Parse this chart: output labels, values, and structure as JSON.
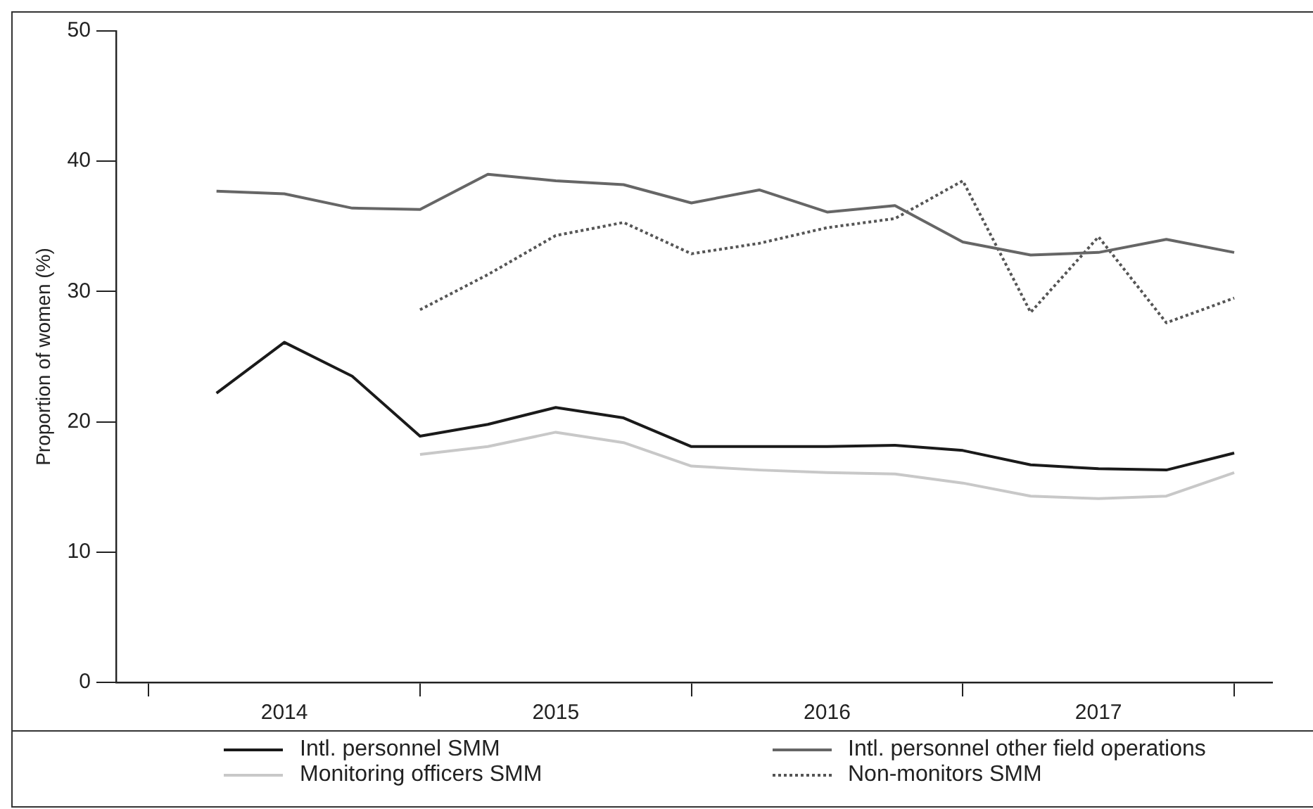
{
  "chart_data": {
    "type": "line",
    "ylabel": "Proportion of women (%)",
    "x": [
      2014.25,
      2014.5,
      2014.75,
      2015,
      2015.25,
      2015.5,
      2015.75,
      2016,
      2016.25,
      2016.5,
      2016.75,
      2017,
      2017.25,
      2017.5,
      2017.75,
      2018
    ],
    "xlim": [
      2013.88,
      2018.14
    ],
    "xticks": [
      {
        "value": 2014,
        "label": null
      },
      {
        "value": 2014.5,
        "label": "2014"
      },
      {
        "value": 2015,
        "label": null
      },
      {
        "value": 2015.5,
        "label": "2015"
      },
      {
        "value": 2016,
        "label": null
      },
      {
        "value": 2016.5,
        "label": "2016"
      },
      {
        "value": 2017,
        "label": null
      },
      {
        "value": 2017.5,
        "label": "2017"
      },
      {
        "value": 2018,
        "label": null
      }
    ],
    "ylim": [
      0,
      50
    ],
    "yticks": [
      0,
      10,
      20,
      30,
      40,
      50
    ],
    "grid": false,
    "legend": "bottom",
    "marker": "none",
    "series": [
      {
        "name": "Intl. personnel SMM",
        "color": "#1a1a1a",
        "line_style": "solid",
        "values": [
          22.2,
          26.1,
          23.5,
          18.9,
          19.8,
          21.1,
          20.3,
          18.1,
          18.1,
          18.1,
          18.2,
          17.8,
          16.7,
          16.4,
          16.3,
          17.6
        ]
      },
      {
        "name": "Intl. personnel other field operations",
        "color": "#666666",
        "line_style": "solid",
        "values": [
          37.7,
          37.5,
          36.4,
          36.3,
          39.0,
          38.5,
          38.2,
          36.8,
          37.8,
          36.1,
          36.6,
          33.8,
          32.8,
          33.0,
          34.0,
          33.0
        ]
      },
      {
        "name": "Monitoring officers SMM",
        "color": "#c8c8c8",
        "line_style": "solid",
        "values": [
          null,
          null,
          null,
          17.5,
          18.1,
          19.2,
          18.4,
          16.6,
          16.3,
          16.1,
          16.0,
          15.3,
          14.3,
          14.1,
          14.3,
          16.1
        ]
      },
      {
        "name": "Non-monitors SMM",
        "color": "#555555",
        "line_style": "dotted",
        "values": [
          null,
          null,
          null,
          28.6,
          31.3,
          34.3,
          35.3,
          32.9,
          33.7,
          34.9,
          35.6,
          38.5,
          28.4,
          34.2,
          27.6,
          29.5
        ]
      }
    ]
  }
}
